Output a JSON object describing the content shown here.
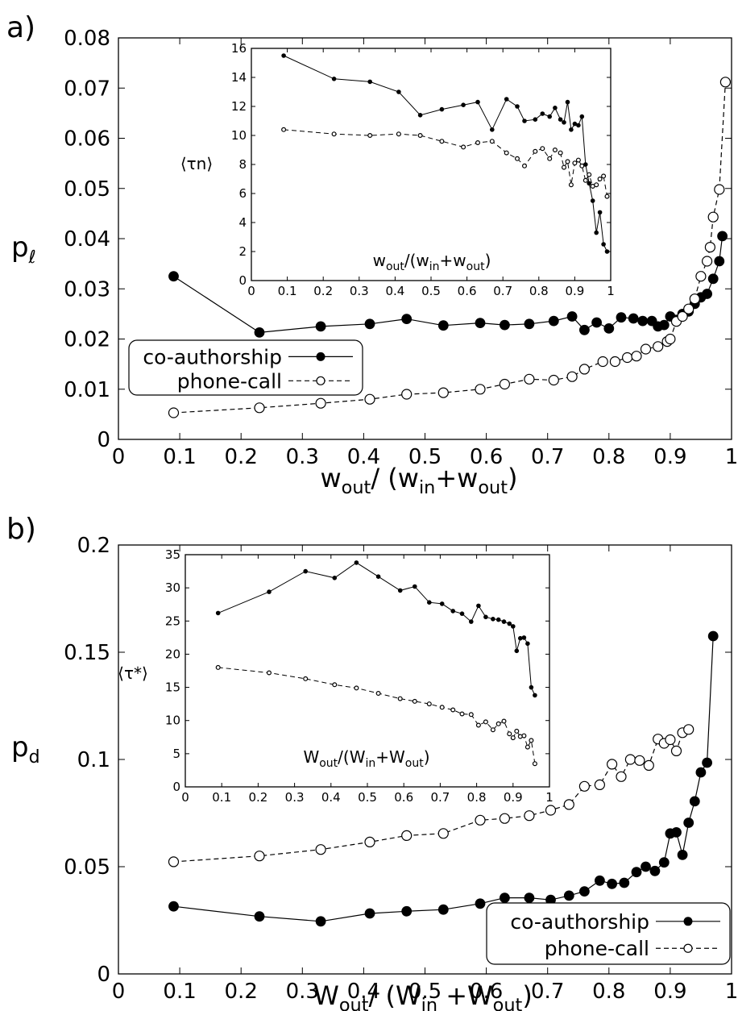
{
  "chart_data": [
    {
      "panel": "a)",
      "type": "line",
      "xlabel": {
        "base": "w",
        "sub1": "out",
        "mid": "/ (w",
        "sub2": "in",
        "mid2": "+w",
        "sub3": "out",
        "end": ")"
      },
      "ylabel": {
        "base": "p",
        "sub": "ℓ"
      },
      "xlim": [
        0,
        1
      ],
      "ylim": [
        0,
        0.08
      ],
      "xticks": [
        "0",
        "0.1",
        "0.2",
        "0.3",
        "0.4",
        "0.5",
        "0.6",
        "0.7",
        "0.8",
        "0.9",
        "1"
      ],
      "yticks": [
        "0",
        "0.01",
        "0.02",
        "0.03",
        "0.04",
        "0.05",
        "0.06",
        "0.07",
        "0.08"
      ],
      "xtick_values": [
        0,
        0.1,
        0.2,
        0.3,
        0.4,
        0.5,
        0.6,
        0.7,
        0.8,
        0.9,
        1
      ],
      "ytick_values": [
        0,
        0.01,
        0.02,
        0.03,
        0.04,
        0.05,
        0.06,
        0.07,
        0.08
      ],
      "legend": {
        "placement": "left-middle",
        "items": [
          "co-authorship",
          "phone-call"
        ]
      },
      "series": [
        {
          "name": "co-authorship",
          "style": "solid-filled",
          "x": [
            0.09,
            0.23,
            0.33,
            0.41,
            0.47,
            0.53,
            0.59,
            0.63,
            0.67,
            0.71,
            0.74,
            0.76,
            0.78,
            0.8,
            0.82,
            0.84,
            0.855,
            0.87,
            0.88,
            0.89,
            0.9,
            0.91,
            0.92,
            0.93,
            0.94,
            0.95,
            0.96,
            0.97,
            0.98,
            0.985
          ],
          "y": [
            0.0325,
            0.0213,
            0.0225,
            0.023,
            0.024,
            0.0227,
            0.0232,
            0.0228,
            0.023,
            0.0236,
            0.0245,
            0.0218,
            0.0233,
            0.0221,
            0.0243,
            0.0241,
            0.0236,
            0.0236,
            0.0225,
            0.0228,
            0.0245,
            0.0238,
            0.025,
            0.0255,
            0.027,
            0.0283,
            0.029,
            0.032,
            0.0355,
            0.0405
          ]
        },
        {
          "name": "phone-call",
          "style": "dashed-open",
          "x": [
            0.09,
            0.23,
            0.33,
            0.41,
            0.47,
            0.53,
            0.59,
            0.63,
            0.67,
            0.71,
            0.74,
            0.76,
            0.79,
            0.81,
            0.83,
            0.845,
            0.86,
            0.88,
            0.895,
            0.9,
            0.91,
            0.92,
            0.93,
            0.94,
            0.95,
            0.96,
            0.965,
            0.97,
            0.98,
            0.99
          ],
          "y": [
            0.0053,
            0.0063,
            0.0072,
            0.008,
            0.009,
            0.0093,
            0.01,
            0.011,
            0.012,
            0.0118,
            0.0125,
            0.014,
            0.0155,
            0.0155,
            0.0163,
            0.0166,
            0.018,
            0.0185,
            0.0195,
            0.02,
            0.0235,
            0.0245,
            0.026,
            0.028,
            0.0325,
            0.0355,
            0.0383,
            0.0443,
            0.0498,
            0.0712
          ]
        }
      ],
      "inset": {
        "type": "line",
        "xlabel": {
          "base": "w",
          "sub1": "out",
          "mid": "/(w",
          "sub2": "in",
          "mid2": "+w",
          "sub3": "out",
          "end": ")"
        },
        "ylabel": "⟨τn⟩",
        "xlim": [
          0,
          1
        ],
        "ylim": [
          0,
          16
        ],
        "xticks": [
          "0",
          "0.1",
          "0.2",
          "0.3",
          "0.4",
          "0.5",
          "0.6",
          "0.7",
          "0.8",
          "0.9",
          "1"
        ],
        "yticks": [
          "0",
          "2",
          "4",
          "6",
          "8",
          "10",
          "12",
          "14",
          "16"
        ],
        "xtick_values": [
          0,
          0.1,
          0.2,
          0.3,
          0.4,
          0.5,
          0.6,
          0.7,
          0.8,
          0.9,
          1
        ],
        "ytick_values": [
          0,
          2,
          4,
          6,
          8,
          10,
          12,
          14,
          16
        ],
        "series": [
          {
            "name": "co-authorship",
            "style": "solid-filled",
            "x": [
              0.09,
              0.23,
              0.33,
              0.41,
              0.47,
              0.53,
              0.59,
              0.63,
              0.67,
              0.71,
              0.74,
              0.76,
              0.79,
              0.81,
              0.83,
              0.845,
              0.86,
              0.87,
              0.88,
              0.89,
              0.9,
              0.91,
              0.92,
              0.93,
              0.94,
              0.95,
              0.96,
              0.97,
              0.98,
              0.99
            ],
            "y": [
              15.5,
              13.9,
              13.7,
              13.0,
              11.4,
              11.8,
              12.1,
              12.3,
              10.4,
              12.5,
              12.0,
              11.0,
              11.1,
              11.5,
              11.3,
              11.9,
              11.1,
              10.9,
              12.3,
              10.4,
              10.8,
              10.7,
              11.3,
              8.0,
              6.7,
              5.5,
              3.3,
              4.7,
              2.5,
              2.0
            ]
          },
          {
            "name": "phone-call",
            "style": "dashed-open",
            "x": [
              0.09,
              0.23,
              0.33,
              0.41,
              0.47,
              0.53,
              0.59,
              0.63,
              0.67,
              0.71,
              0.74,
              0.76,
              0.79,
              0.81,
              0.83,
              0.845,
              0.86,
              0.87,
              0.88,
              0.89,
              0.9,
              0.91,
              0.92,
              0.93,
              0.94,
              0.95,
              0.96,
              0.97,
              0.98,
              0.99
            ],
            "y": [
              10.4,
              10.1,
              10.0,
              10.1,
              10.0,
              9.6,
              9.2,
              9.5,
              9.6,
              8.8,
              8.4,
              7.9,
              8.9,
              9.1,
              8.4,
              9.0,
              8.8,
              7.8,
              8.2,
              6.6,
              8.1,
              8.3,
              7.9,
              6.9,
              7.3,
              6.5,
              6.6,
              7.0,
              7.2,
              5.8
            ]
          }
        ]
      }
    },
    {
      "panel": "b)",
      "type": "line",
      "xlabel": {
        "base": "W",
        "sub1": "out",
        "mid": "/ (W",
        "sub2": "in",
        "mid2": " +W",
        "sub3": "out",
        "end": ")"
      },
      "ylabel": {
        "base": "p",
        "sub": "d"
      },
      "xlim": [
        0,
        1
      ],
      "ylim": [
        0,
        0.2
      ],
      "xticks": [
        "0",
        "0.1",
        "0.2",
        "0.3",
        "0.4",
        "0.5",
        "0.6",
        "0.7",
        "0.8",
        "0.9",
        "1"
      ],
      "yticks": [
        "0",
        "0.05",
        "0.1",
        "0.15",
        "0.2"
      ],
      "xtick_values": [
        0,
        0.1,
        0.2,
        0.3,
        0.4,
        0.5,
        0.6,
        0.7,
        0.8,
        0.9,
        1
      ],
      "ytick_values": [
        0,
        0.05,
        0.1,
        0.15,
        0.2
      ],
      "legend": {
        "placement": "bottom-right",
        "items": [
          "co-authorship",
          "phone-call"
        ]
      },
      "series": [
        {
          "name": "co-authorship",
          "style": "solid-filled",
          "x": [
            0.09,
            0.23,
            0.33,
            0.41,
            0.47,
            0.53,
            0.59,
            0.63,
            0.67,
            0.705,
            0.735,
            0.76,
            0.785,
            0.805,
            0.825,
            0.845,
            0.86,
            0.875,
            0.89,
            0.9,
            0.91,
            0.92,
            0.93,
            0.94,
            0.95,
            0.96,
            0.97
          ],
          "y": [
            0.0315,
            0.0268,
            0.0245,
            0.0282,
            0.0292,
            0.03,
            0.0328,
            0.0355,
            0.0355,
            0.0345,
            0.0365,
            0.0385,
            0.0435,
            0.042,
            0.0425,
            0.0475,
            0.05,
            0.048,
            0.052,
            0.0655,
            0.066,
            0.0555,
            0.0705,
            0.0805,
            0.094,
            0.0985,
            0.1575
          ]
        },
        {
          "name": "phone-call",
          "style": "dashed-open",
          "x": [
            0.09,
            0.23,
            0.33,
            0.41,
            0.47,
            0.53,
            0.59,
            0.63,
            0.67,
            0.705,
            0.735,
            0.76,
            0.785,
            0.805,
            0.82,
            0.835,
            0.85,
            0.865,
            0.88,
            0.89,
            0.9,
            0.91,
            0.92,
            0.93
          ],
          "y": [
            0.0523,
            0.055,
            0.058,
            0.0615,
            0.0645,
            0.0655,
            0.0717,
            0.0725,
            0.0738,
            0.0763,
            0.079,
            0.0875,
            0.0882,
            0.0978,
            0.092,
            0.1,
            0.0995,
            0.0972,
            0.1095,
            0.1075,
            0.1092,
            0.104,
            0.1125,
            0.114
          ]
        }
      ],
      "inset": {
        "type": "line",
        "xlabel": {
          "base": "W",
          "sub1": "out",
          "mid": "/(W",
          "sub2": "in",
          "mid2": "+W",
          "sub3": "out",
          "end": ")"
        },
        "ylabel": "⟨τ*⟩",
        "xlim": [
          0,
          1
        ],
        "ylim": [
          0,
          35
        ],
        "xticks": [
          "0",
          "0.1",
          "0.2",
          "0.3",
          "0.4",
          "0.5",
          "0.6",
          "0.7",
          "0.8",
          "0.9",
          "1"
        ],
        "yticks": [
          "0",
          "5",
          "10",
          "15",
          "20",
          "25",
          "30",
          "35"
        ],
        "xtick_values": [
          0,
          0.1,
          0.2,
          0.3,
          0.4,
          0.5,
          0.6,
          0.7,
          0.8,
          0.9,
          1
        ],
        "ytick_values": [
          0,
          5,
          10,
          15,
          20,
          25,
          30,
          35
        ],
        "series": [
          {
            "name": "co-authorship",
            "style": "solid-filled",
            "x": [
              0.09,
              0.23,
              0.33,
              0.41,
              0.47,
              0.53,
              0.59,
              0.63,
              0.67,
              0.705,
              0.735,
              0.76,
              0.785,
              0.805,
              0.825,
              0.845,
              0.86,
              0.875,
              0.89,
              0.9,
              0.91,
              0.92,
              0.93,
              0.94,
              0.95,
              0.96
            ],
            "y": [
              26.2,
              29.4,
              32.5,
              31.5,
              33.8,
              31.7,
              29.6,
              30.2,
              27.8,
              27.6,
              26.5,
              26.1,
              24.9,
              27.3,
              25.6,
              25.3,
              25.2,
              24.9,
              24.6,
              24.2,
              20.5,
              22.4,
              22.5,
              21.6,
              15.0,
              13.8
            ]
          },
          {
            "name": "phone-call",
            "style": "dashed-open",
            "x": [
              0.09,
              0.23,
              0.33,
              0.41,
              0.47,
              0.53,
              0.59,
              0.63,
              0.67,
              0.705,
              0.735,
              0.76,
              0.785,
              0.805,
              0.825,
              0.845,
              0.86,
              0.875,
              0.89,
              0.9,
              0.91,
              0.92,
              0.93,
              0.94,
              0.95,
              0.96
            ],
            "y": [
              18.0,
              17.2,
              16.3,
              15.4,
              14.9,
              14.1,
              13.3,
              12.9,
              12.5,
              12.0,
              11.6,
              11.0,
              10.9,
              9.3,
              9.8,
              8.6,
              9.5,
              9.9,
              8.0,
              7.4,
              8.4,
              7.6,
              7.7,
              6.0,
              7.0,
              3.5
            ]
          }
        ]
      }
    }
  ]
}
